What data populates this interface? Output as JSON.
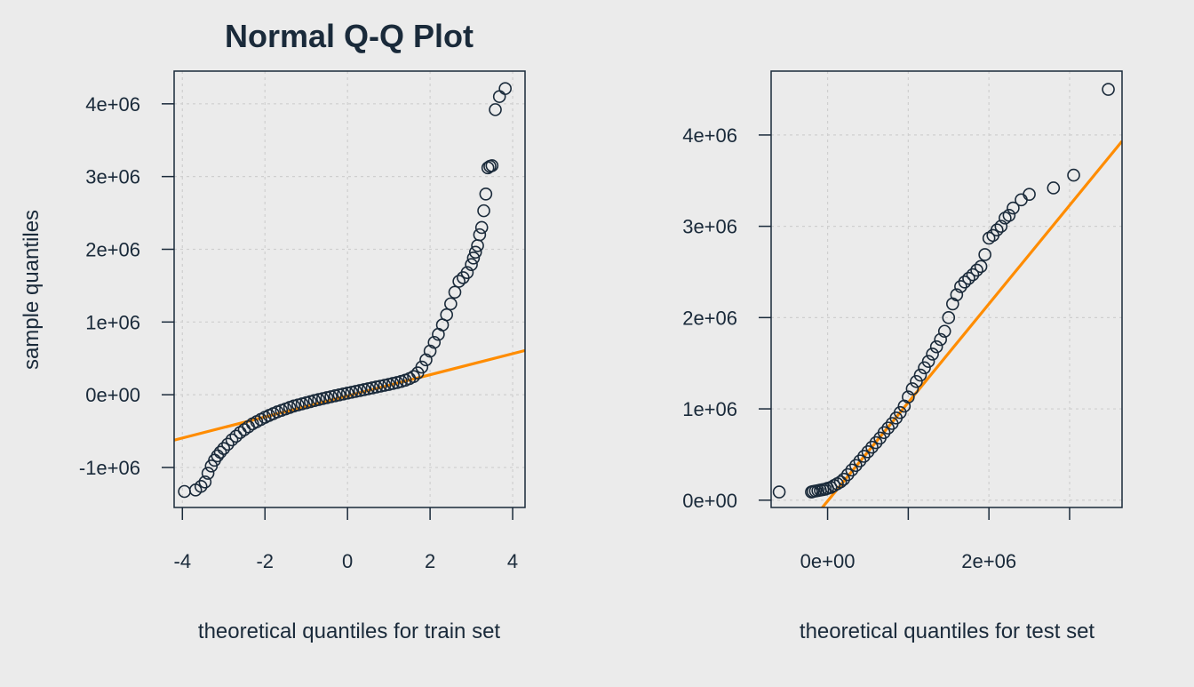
{
  "chart_data": [
    {
      "type": "scatter",
      "title": "Normal Q-Q Plot",
      "xlabel": "theoretical quantiles for train set",
      "ylabel": "sample quantiles",
      "xlim": [
        -4.2,
        4.3
      ],
      "ylim": [
        -1550000,
        4450000
      ],
      "xticks": [
        -4,
        -2,
        0,
        2,
        4
      ],
      "xtick_labels": [
        "-4",
        "-2",
        "0",
        "2",
        "4"
      ],
      "yticks": [
        -1000000,
        0,
        1000000,
        2000000,
        3000000,
        4000000
      ],
      "ytick_labels": [
        "-1e+06",
        "0e+00",
        "1e+06",
        "2e+06",
        "3e+06",
        "4e+06"
      ],
      "grid": true,
      "point_color": "#1a2a3a",
      "line_color": "#ff8c00",
      "reference_line": {
        "slope": 145000,
        "intercept": -15000
      },
      "series": [
        {
          "x": [
            -3.95,
            -3.68,
            -3.55,
            -3.45,
            -3.38,
            -3.3,
            -3.22,
            -3.15,
            -3.08,
            -3.0,
            -2.9,
            -2.8,
            -2.7,
            -2.6,
            -2.5,
            -2.4,
            -2.3,
            -2.2,
            -2.1,
            -2.0,
            -1.9,
            -1.8,
            -1.7,
            -1.6,
            -1.5,
            -1.4,
            -1.3,
            -1.2,
            -1.1,
            -1.0,
            -0.9,
            -0.8,
            -0.7,
            -0.6,
            -0.5,
            -0.4,
            -0.3,
            -0.2,
            -0.1,
            0.0,
            0.1,
            0.2,
            0.3,
            0.4,
            0.5,
            0.6,
            0.7,
            0.8,
            0.9,
            1.0,
            1.1,
            1.2,
            1.3,
            1.4,
            1.5,
            1.6,
            1.7,
            1.8,
            1.9,
            2.0,
            2.1,
            2.2,
            2.3,
            2.4,
            2.5,
            2.6,
            2.7,
            2.8,
            2.9,
            3.0,
            3.05,
            3.1,
            3.15,
            3.2,
            3.25,
            3.3,
            3.35,
            3.4,
            3.45,
            3.5,
            3.58,
            3.68,
            3.82
          ],
          "y": [
            -1330000,
            -1310000,
            -1260000,
            -1200000,
            -1080000,
            -980000,
            -900000,
            -840000,
            -790000,
            -740000,
            -680000,
            -620000,
            -570000,
            -520000,
            -480000,
            -440000,
            -400000,
            -370000,
            -340000,
            -310000,
            -285000,
            -260000,
            -235000,
            -215000,
            -195000,
            -175000,
            -155000,
            -140000,
            -125000,
            -110000,
            -95000,
            -80000,
            -66000,
            -53000,
            -40000,
            -27000,
            -14000,
            -2000,
            10000,
            22000,
            34000,
            46000,
            58000,
            70000,
            82000,
            94000,
            106000,
            118000,
            130000,
            142000,
            155000,
            168000,
            183000,
            200000,
            222000,
            250000,
            300000,
            380000,
            480000,
            600000,
            720000,
            830000,
            960000,
            1100000,
            1250000,
            1410000,
            1560000,
            1610000,
            1680000,
            1790000,
            1880000,
            1960000,
            2050000,
            2200000,
            2300000,
            2530000,
            2760000,
            3120000,
            3140000,
            3150000,
            3920000,
            4100000,
            4210000
          ]
        }
      ]
    },
    {
      "type": "scatter",
      "title": "",
      "xlabel": "theoretical quantiles for test set",
      "ylabel": "",
      "xlim": [
        -700000,
        3650000
      ],
      "ylim": [
        -80000,
        4700000
      ],
      "xticks": [
        0,
        1000000,
        2000000,
        3000000
      ],
      "xtick_labels": [
        "0e+00",
        "",
        "2e+06",
        ""
      ],
      "yticks": [
        0,
        1000000,
        2000000,
        3000000,
        4000000
      ],
      "ytick_labels": [
        "0e+00",
        "1e+06",
        "2e+06",
        "3e+06",
        "4e+06"
      ],
      "grid": true,
      "point_color": "#1a2a3a",
      "line_color": "#ff8c00",
      "reference_line": {
        "slope": 1.08,
        "intercept": -10000
      },
      "series": [
        {
          "x": [
            -600000,
            -200000,
            -180000,
            -150000,
            -120000,
            -90000,
            -60000,
            -30000,
            0,
            40000,
            80000,
            120000,
            160000,
            200000,
            250000,
            300000,
            350000,
            400000,
            450000,
            500000,
            550000,
            600000,
            650000,
            700000,
            750000,
            800000,
            850000,
            900000,
            950000,
            1000000,
            1050000,
            1100000,
            1150000,
            1200000,
            1250000,
            1300000,
            1350000,
            1400000,
            1450000,
            1500000,
            1550000,
            1600000,
            1650000,
            1700000,
            1750000,
            1800000,
            1850000,
            1900000,
            1950000,
            2000000,
            2050000,
            2100000,
            2150000,
            2200000,
            2250000,
            2300000,
            2400000,
            2500000,
            2800000,
            3050000,
            3480000
          ],
          "y": [
            90000,
            90000,
            95000,
            100000,
            105000,
            110000,
            115000,
            120000,
            130000,
            140000,
            160000,
            180000,
            200000,
            230000,
            280000,
            330000,
            380000,
            430000,
            480000,
            530000,
            580000,
            630000,
            680000,
            740000,
            790000,
            840000,
            900000,
            960000,
            1030000,
            1130000,
            1220000,
            1300000,
            1370000,
            1450000,
            1520000,
            1600000,
            1680000,
            1760000,
            1850000,
            2000000,
            2150000,
            2250000,
            2340000,
            2390000,
            2430000,
            2470000,
            2520000,
            2560000,
            2690000,
            2870000,
            2900000,
            2960000,
            3000000,
            3090000,
            3120000,
            3200000,
            3290000,
            3350000,
            3420000,
            3560000,
            4500000
          ]
        }
      ]
    }
  ]
}
